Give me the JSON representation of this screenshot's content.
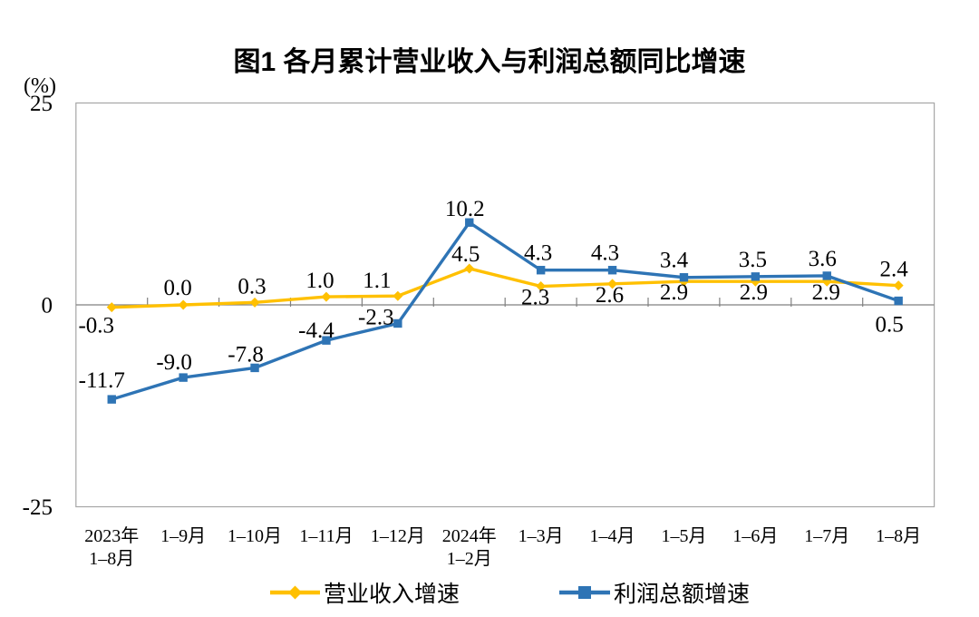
{
  "title": "图1  各月累计营业收入与利润总额同比增速",
  "chart_data": {
    "type": "line",
    "unit_label": "(%)",
    "categories": [
      [
        "2023年",
        "1–8月"
      ],
      [
        "1–9月"
      ],
      [
        "1–10月"
      ],
      [
        "1–11月"
      ],
      [
        "1–12月"
      ],
      [
        "2024年",
        "1–2月"
      ],
      [
        "1–3月"
      ],
      [
        "1–4月"
      ],
      [
        "1–5月"
      ],
      [
        "1–6月"
      ],
      [
        "1–7月"
      ],
      [
        "1–8月"
      ]
    ],
    "series": [
      {
        "name": "营业收入增速",
        "color": "#FFC000",
        "marker": "diamond",
        "values": [
          -0.3,
          0.0,
          0.3,
          1.0,
          1.1,
          4.5,
          2.3,
          2.6,
          2.9,
          2.9,
          2.9,
          2.4
        ],
        "label_dx": [
          -17,
          -6,
          -3,
          -7,
          -23,
          -4,
          -6,
          -3,
          -11,
          -2,
          -1,
          -5
        ],
        "label_dy": [
          28,
          -11,
          -10,
          -10,
          -9,
          -8,
          20,
          20,
          20,
          20,
          20,
          -10
        ]
      },
      {
        "name": "利润总额增速",
        "color": "#2E74B5",
        "marker": "square",
        "values": [
          -11.7,
          -9.0,
          -7.8,
          -4.4,
          -2.3,
          10.2,
          4.3,
          4.3,
          3.4,
          3.5,
          3.6,
          0.5
        ],
        "label_dx": [
          -11,
          -10,
          -10,
          -11,
          -24,
          -5,
          -3,
          -8,
          -11,
          -3,
          -5,
          -10
        ],
        "label_dy": [
          -13,
          -9,
          -7,
          -3,
          1,
          -7,
          -11,
          -11,
          -11,
          -11,
          -11,
          34
        ]
      }
    ],
    "ylim": [
      -25,
      25
    ],
    "yticks": [
      25,
      0,
      -25
    ],
    "grid": false,
    "legend_position": "bottom"
  }
}
